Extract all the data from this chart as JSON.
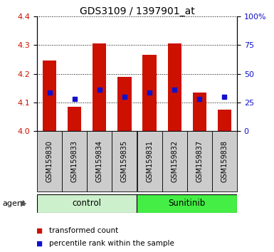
{
  "title": "GDS3109 / 1397901_at",
  "samples": [
    "GSM159830",
    "GSM159833",
    "GSM159834",
    "GSM159835",
    "GSM159831",
    "GSM159832",
    "GSM159837",
    "GSM159838"
  ],
  "red_values": [
    4.245,
    4.085,
    4.305,
    4.19,
    4.265,
    4.305,
    4.135,
    4.075
  ],
  "blue_values": [
    4.135,
    4.113,
    4.145,
    4.12,
    4.135,
    4.145,
    4.113,
    4.12
  ],
  "ylim_left": [
    4.0,
    4.4
  ],
  "ylim_right": [
    0,
    100
  ],
  "yticks_left": [
    4.0,
    4.1,
    4.2,
    4.3,
    4.4
  ],
  "yticks_right": [
    0,
    25,
    50,
    75,
    100
  ],
  "ytick_right_labels": [
    "0",
    "25",
    "50",
    "75",
    "100%"
  ],
  "group_labels": [
    "control",
    "Sunitinib"
  ],
  "group_splits": [
    4
  ],
  "group_colors": [
    "#ccf0cc",
    "#44ee44"
  ],
  "agent_label": "agent",
  "bar_color": "#cc1100",
  "blue_color": "#1111cc",
  "bar_bottom": 4.0,
  "bar_width": 0.55,
  "tick_label_color_left": "#cc1100",
  "tick_label_color_right": "#1111cc",
  "legend_red_label": "transformed count",
  "legend_blue_label": "percentile rank within the sample",
  "blue_square_size": 25,
  "sample_bg_color": "#cccccc",
  "n_samples": 8
}
